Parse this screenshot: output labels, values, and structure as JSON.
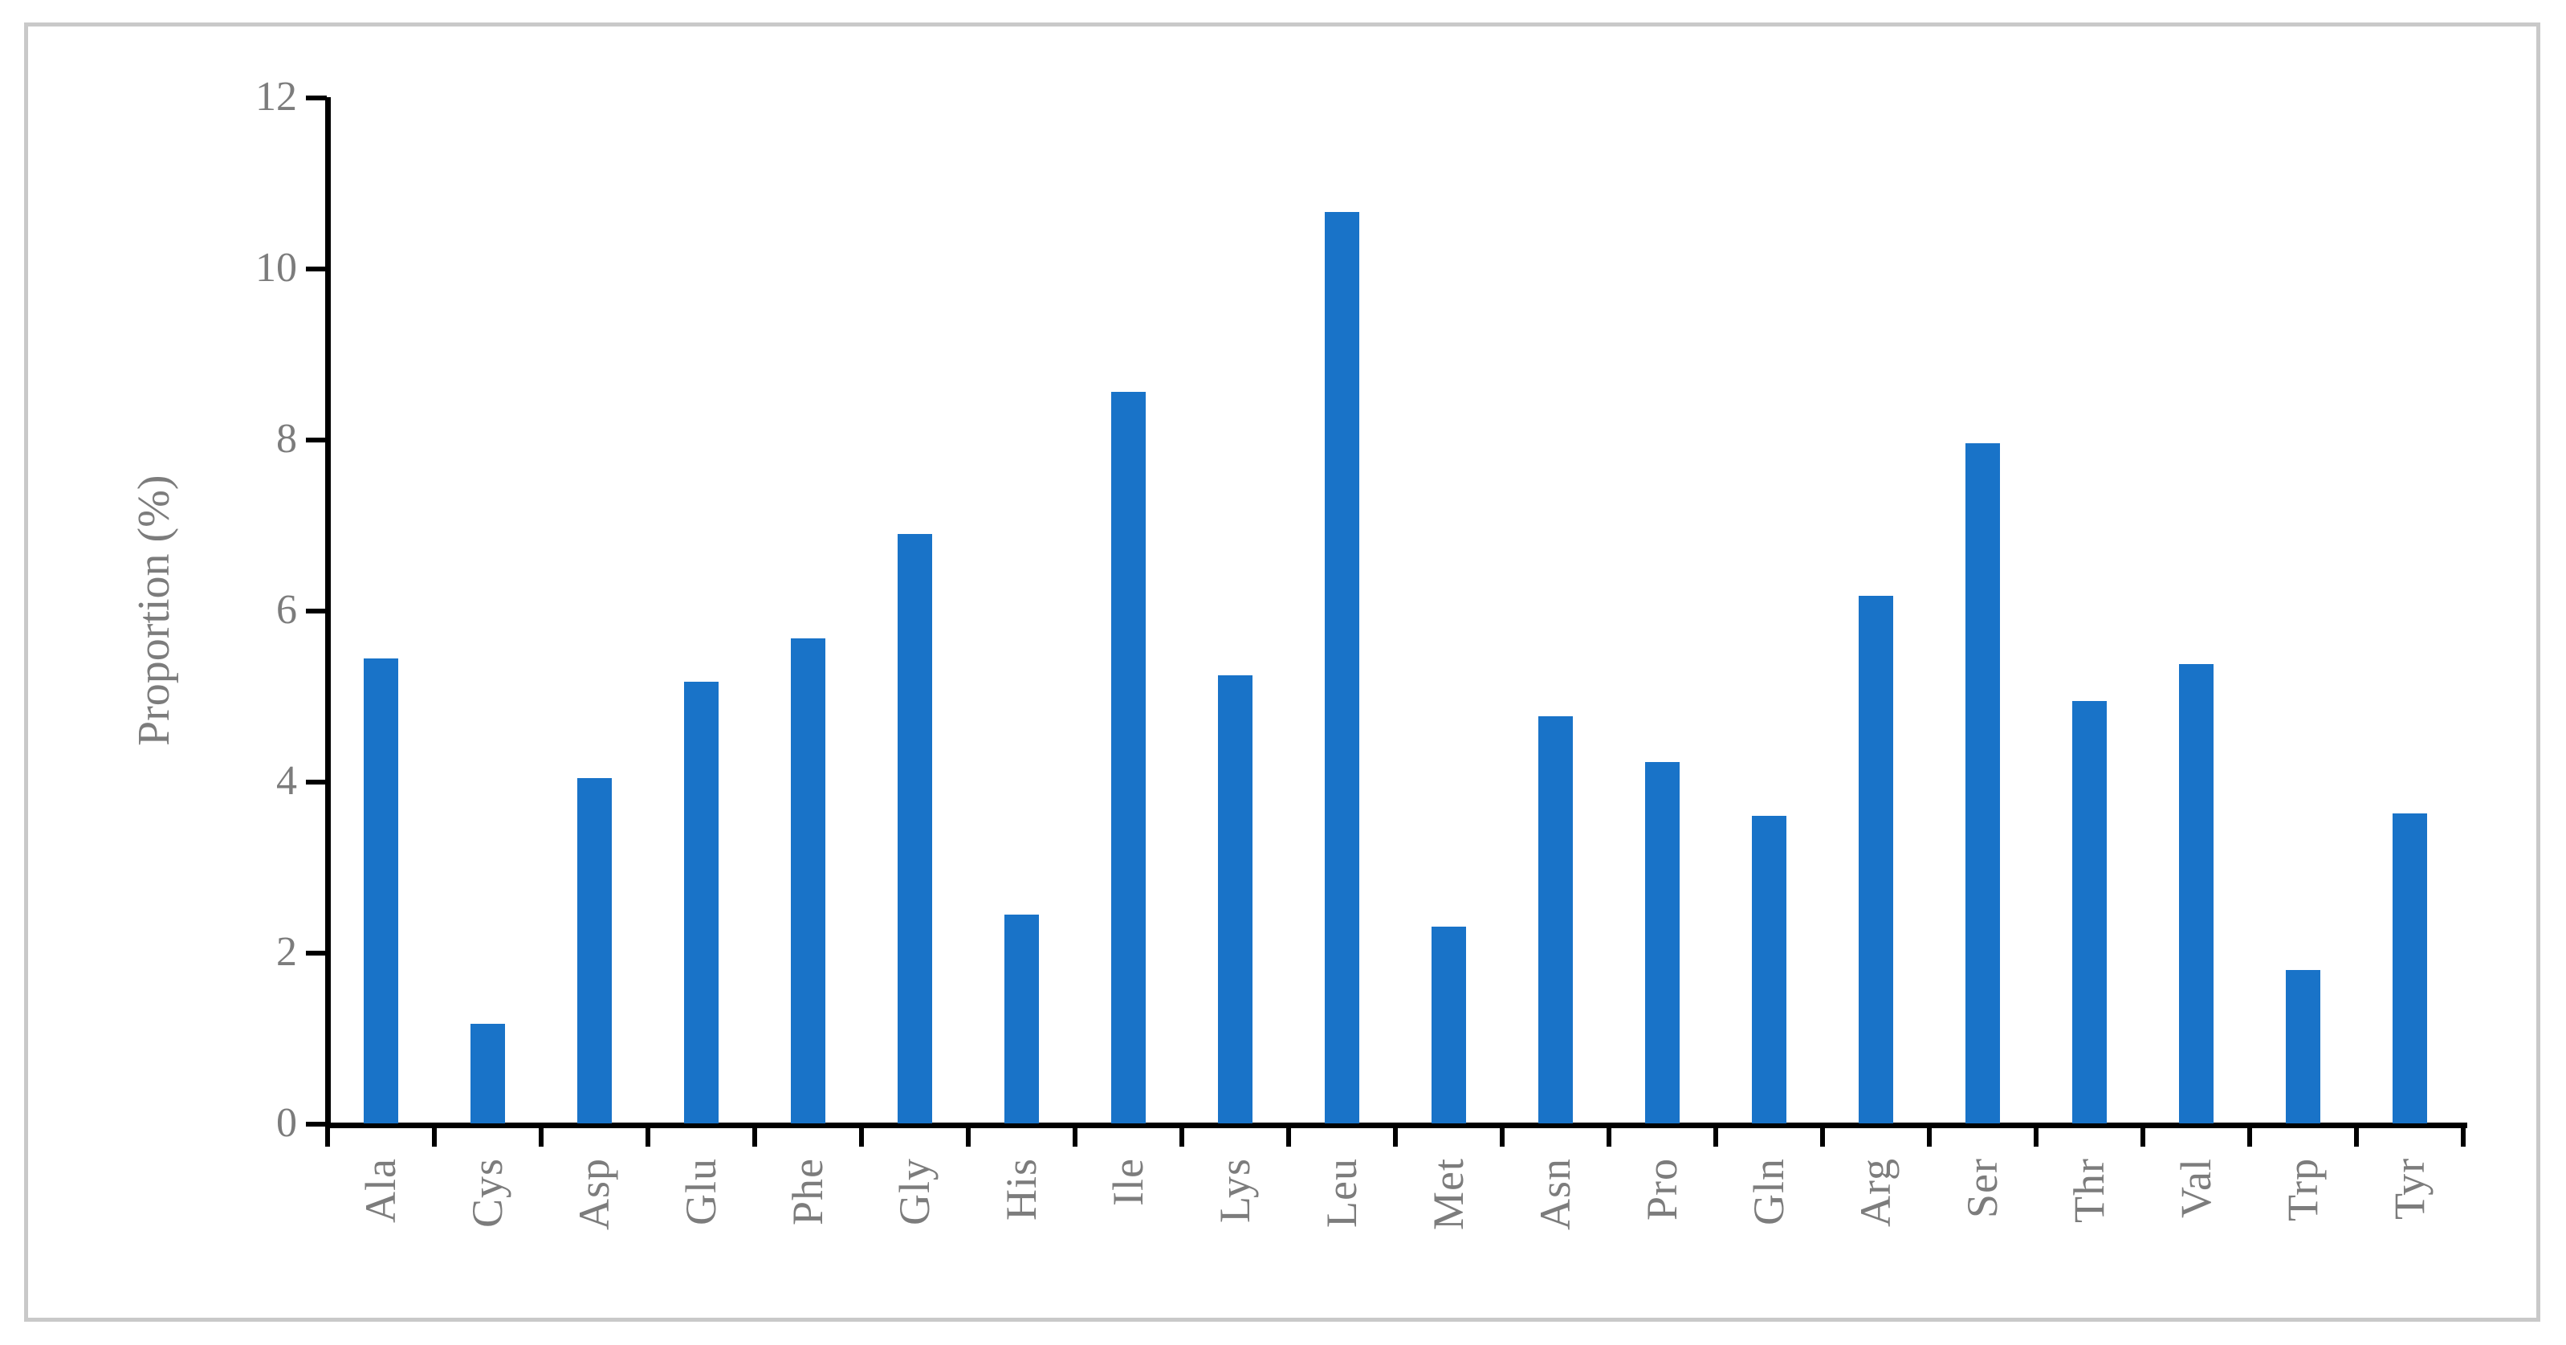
{
  "figure": {
    "border_color": "#c9c9c9",
    "background": "#ffffff"
  },
  "chart_data": {
    "type": "bar",
    "title": "",
    "xlabel": "",
    "ylabel": "Proportion (%)",
    "ylim": [
      0,
      12
    ],
    "yticks": [
      0,
      2,
      4,
      6,
      8,
      10,
      12
    ],
    "grid": false,
    "legend": "none",
    "bar_color": "#1973c8",
    "axis_color": "#000000",
    "label_color": "#7c7c7c",
    "categories": [
      "Ala",
      "Cys",
      "Asp",
      "Glu",
      "Phe",
      "Gly",
      "His",
      "Ile",
      "Lys",
      "Leu",
      "Met",
      "Asn",
      "Pro",
      "Gln",
      "Arg",
      "Ser",
      "Thr",
      "Val",
      "Trp",
      "Tyr"
    ],
    "values": [
      5.44,
      1.16,
      4.04,
      5.16,
      5.67,
      6.89,
      2.44,
      8.55,
      5.24,
      10.66,
      2.3,
      4.76,
      4.23,
      3.6,
      6.17,
      7.95,
      4.94,
      5.37,
      1.79,
      3.62
    ]
  }
}
